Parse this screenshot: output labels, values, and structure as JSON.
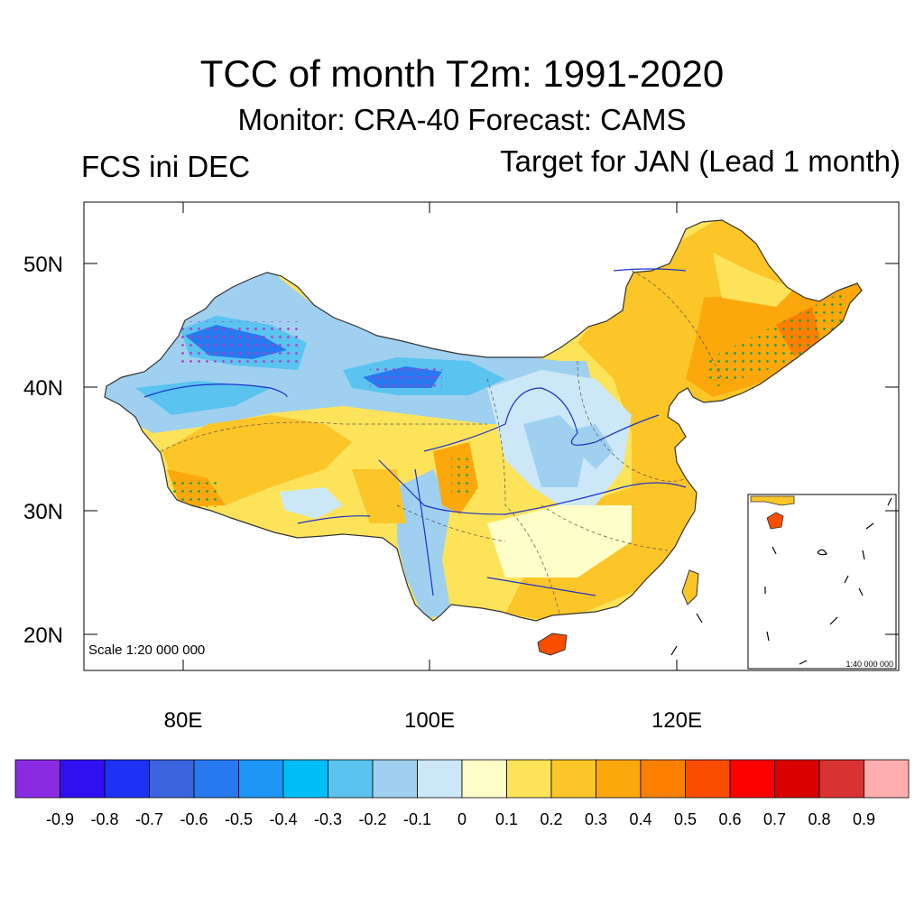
{
  "title": "TCC of month T2m: 1991-2020",
  "subtitle": "Monitor: CRA-40   Forecast: CAMS",
  "left_label": "FCS ini DEC",
  "right_label": "Target for JAN (Lead 1 month)",
  "map": {
    "lat_ticks": [
      "50N",
      "40N",
      "30N",
      "20N"
    ],
    "lon_ticks": [
      "80E",
      "100E",
      "120E"
    ],
    "scale_main": "Scale 1:20 000 000",
    "scale_inset": "1:40 000 000"
  },
  "colorbar": {
    "colors": [
      "#8a2be2",
      "#3010f0",
      "#1e32f5",
      "#3c64e0",
      "#2878f0",
      "#1e96f5",
      "#00bef8",
      "#5ac3f0",
      "#9fd0f0",
      "#cce8f8",
      "#fefec8",
      "#fde35a",
      "#fcc528",
      "#fca80c",
      "#fc7f00",
      "#fb4d00",
      "#fd0000",
      "#d90000",
      "#d93232",
      "#feaeae"
    ],
    "labels": [
      "-0.9",
      "-0.8",
      "-0.7",
      "-0.6",
      "-0.5",
      "-0.4",
      "-0.3",
      "-0.2",
      "-0.1",
      "0",
      "0.1",
      "0.2",
      "0.3",
      "0.4",
      "0.5",
      "0.6",
      "0.7",
      "0.8",
      "0.9"
    ]
  }
}
